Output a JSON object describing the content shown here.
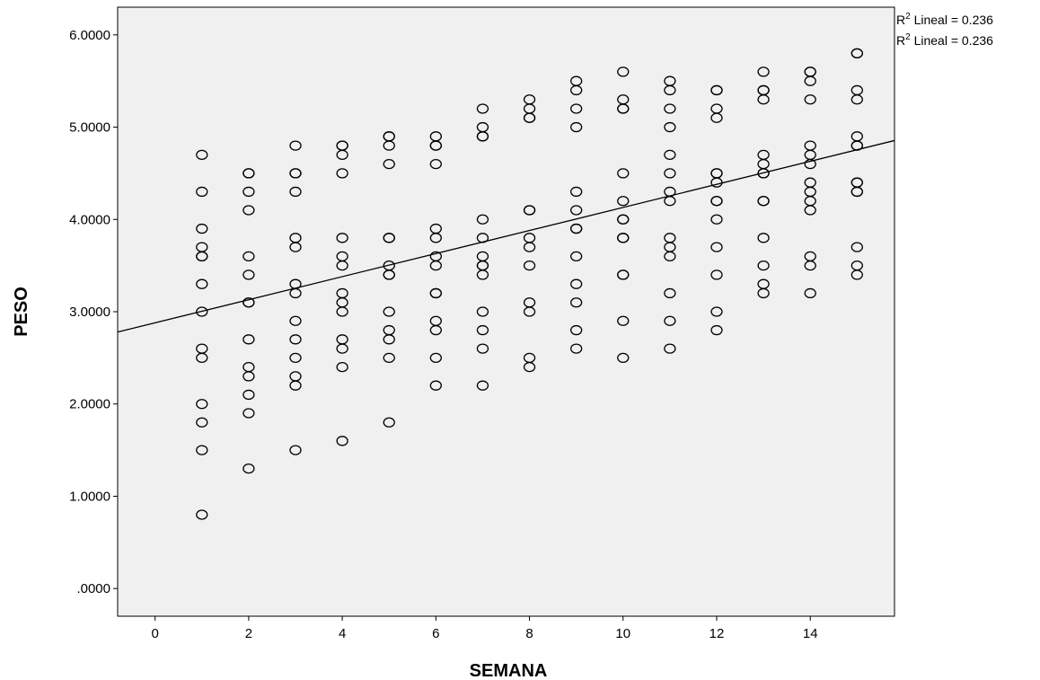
{
  "chart_data": {
    "type": "scatter",
    "title": "",
    "xlabel": "SEMANA",
    "ylabel": "PESO",
    "xlim": [
      -0.8,
      15.8
    ],
    "ylim": [
      -0.3,
      6.3
    ],
    "x_ticks": [
      0,
      2,
      4,
      6,
      8,
      10,
      12,
      14
    ],
    "x_tick_labels": [
      "0",
      "2",
      "4",
      "6",
      "8",
      "10",
      "12",
      "14"
    ],
    "y_ticks": [
      0,
      1,
      2,
      3,
      4,
      5,
      6
    ],
    "y_tick_labels": [
      ".0000",
      "1.0000",
      "2.0000",
      "3.0000",
      "4.0000",
      "5.0000",
      "6.0000"
    ],
    "grid": false,
    "marker": "open-circle",
    "background_color": "#f0f0f0",
    "marker_color": "#000000",
    "fit_line": {
      "type": "linear",
      "intercept": 2.88,
      "slope": 0.125
    },
    "annotations": [
      {
        "prefix": "R",
        "sup": "2",
        "text": " Lineal = 0.236"
      },
      {
        "prefix": "R",
        "sup": "2",
        "text": " Lineal = 0.236"
      }
    ],
    "series": [
      {
        "x": 1,
        "y": [
          4.7,
          4.3,
          3.9,
          3.7,
          3.6,
          3.6,
          3.3,
          3.0,
          2.6,
          2.5,
          2.0,
          1.8,
          1.5,
          0.8
        ]
      },
      {
        "x": 2,
        "y": [
          4.5,
          4.5,
          4.3,
          4.1,
          3.6,
          3.4,
          3.1,
          3.1,
          2.7,
          2.4,
          2.3,
          2.1,
          1.9,
          1.3
        ]
      },
      {
        "x": 3,
        "y": [
          4.8,
          4.5,
          4.5,
          4.3,
          3.8,
          3.7,
          3.3,
          3.2,
          2.9,
          2.7,
          2.5,
          2.3,
          2.2,
          1.5
        ]
      },
      {
        "x": 4,
        "y": [
          4.8,
          4.8,
          4.7,
          4.5,
          3.8,
          3.6,
          3.5,
          3.2,
          3.1,
          3.0,
          2.7,
          2.6,
          2.4,
          1.6
        ]
      },
      {
        "x": 5,
        "y": [
          4.9,
          4.9,
          4.8,
          4.6,
          3.8,
          3.8,
          3.5,
          3.4,
          3.4,
          3.0,
          2.8,
          2.7,
          2.5,
          1.8
        ]
      },
      {
        "x": 6,
        "y": [
          4.9,
          4.8,
          4.8,
          4.6,
          3.9,
          3.8,
          3.6,
          3.5,
          3.2,
          3.2,
          2.9,
          2.8,
          2.5,
          2.2
        ]
      },
      {
        "x": 7,
        "y": [
          5.2,
          5.0,
          4.9,
          4.9,
          4.0,
          3.8,
          3.6,
          3.5,
          3.5,
          3.4,
          3.0,
          2.8,
          2.6,
          2.2
        ]
      },
      {
        "x": 8,
        "y": [
          5.3,
          5.2,
          5.1,
          5.1,
          4.1,
          4.1,
          3.8,
          3.7,
          3.5,
          3.1,
          3.0,
          2.5,
          2.4
        ]
      },
      {
        "x": 9,
        "y": [
          5.5,
          5.4,
          5.2,
          5.0,
          4.3,
          4.1,
          3.9,
          3.9,
          3.6,
          3.3,
          3.1,
          2.8,
          2.6
        ]
      },
      {
        "x": 10,
        "y": [
          5.6,
          5.3,
          5.2,
          5.2,
          4.5,
          4.2,
          4.0,
          4.0,
          3.8,
          3.8,
          3.4,
          3.4,
          2.9,
          2.5
        ]
      },
      {
        "x": 11,
        "y": [
          5.5,
          5.4,
          5.2,
          5.0,
          4.7,
          4.5,
          4.3,
          4.2,
          3.8,
          3.7,
          3.6,
          3.2,
          2.9,
          2.6
        ]
      },
      {
        "x": 12,
        "y": [
          5.4,
          5.4,
          5.2,
          5.1,
          4.5,
          4.5,
          4.4,
          4.2,
          4.2,
          4.0,
          3.7,
          3.4,
          3.0,
          2.8
        ]
      },
      {
        "x": 13,
        "y": [
          5.6,
          5.4,
          5.4,
          5.3,
          4.7,
          4.6,
          4.5,
          4.5,
          4.2,
          4.2,
          3.8,
          3.5,
          3.3,
          3.2
        ]
      },
      {
        "x": 14,
        "y": [
          5.6,
          5.6,
          5.5,
          5.3,
          4.8,
          4.7,
          4.6,
          4.4,
          4.3,
          4.2,
          4.1,
          3.6,
          3.5,
          3.2
        ]
      },
      {
        "x": 15,
        "y": [
          5.8,
          5.8,
          5.4,
          5.3,
          4.9,
          4.8,
          4.8,
          4.4,
          4.4,
          4.3,
          4.3,
          3.7,
          3.5,
          3.4
        ]
      }
    ]
  }
}
